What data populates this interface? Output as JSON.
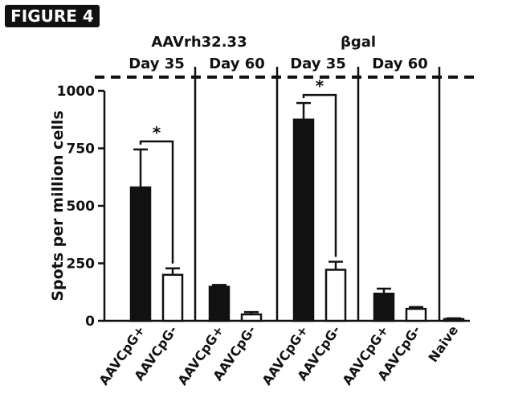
{
  "figure_label": "FIGURE 4",
  "chart_data": {
    "type": "bar",
    "ylabel": "Spots per million cells",
    "ylim": [
      0,
      1000
    ],
    "yticks": [
      0,
      250,
      500,
      750,
      1000
    ],
    "dashed_line_value": 1060,
    "panels": [
      {
        "title": "AAVrh32.33",
        "groups": [
          {
            "label": "Day 35",
            "bars": [
              {
                "category": "AAVCpG+",
                "value": 580,
                "error": 165,
                "fill": "solid"
              },
              {
                "category": "AAVCpG-",
                "value": 200,
                "error": 28,
                "fill": "open"
              }
            ],
            "significance": "*"
          },
          {
            "label": "Day 60",
            "bars": [
              {
                "category": "AAVCpG+",
                "value": 148,
                "error": 8,
                "fill": "solid"
              },
              {
                "category": "AAVCpG-",
                "value": 28,
                "error": 10,
                "fill": "open"
              }
            ]
          }
        ]
      },
      {
        "title": "βgal",
        "groups": [
          {
            "label": "Day 35",
            "bars": [
              {
                "category": "AAVCpG+",
                "value": 875,
                "error": 72,
                "fill": "solid"
              },
              {
                "category": "AAVCpG-",
                "value": 222,
                "error": 35,
                "fill": "open"
              }
            ],
            "significance": "*"
          },
          {
            "label": "Day 60",
            "bars": [
              {
                "category": "AAVCpG+",
                "value": 118,
                "error": 22,
                "fill": "solid"
              },
              {
                "category": "AAVCpG-",
                "value": 52,
                "error": 8,
                "fill": "open"
              }
            ]
          }
        ]
      },
      {
        "title": "",
        "groups": [
          {
            "label": "",
            "bars": [
              {
                "category": "Naive",
                "value": 8,
                "error": 3,
                "fill": "solid"
              }
            ]
          }
        ]
      }
    ],
    "colors": {
      "solid": "#111111",
      "open": "#ffffff",
      "stroke": "#111111"
    }
  }
}
